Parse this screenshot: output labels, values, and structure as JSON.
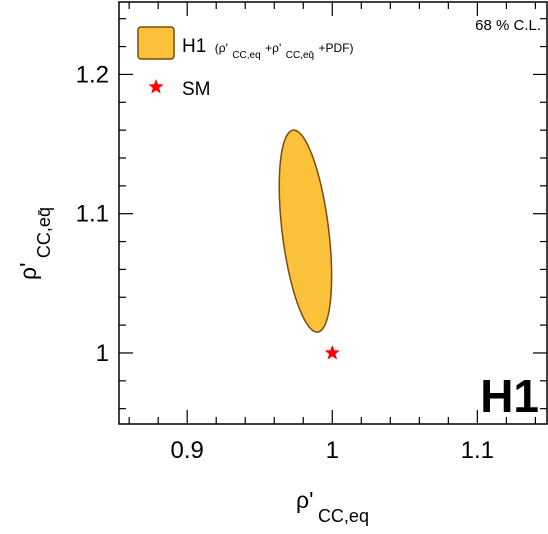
{
  "chart_data": {
    "type": "contour",
    "confidence_label": "68 % C.L.",
    "watermark": "H1",
    "xlabel": {
      "main": "ρ'",
      "sub": "CC,eq"
    },
    "ylabel": {
      "main": "ρ'",
      "sub": "CC,eq̄"
    },
    "xlim": [
      0.853,
      1.148
    ],
    "ylim": [
      0.949,
      1.252
    ],
    "xticks": [
      0.9,
      1.0,
      1.1
    ],
    "xtick_labels": [
      "0.9",
      "1",
      "1.1"
    ],
    "yticks": [
      1.0,
      1.1,
      1.2
    ],
    "ytick_labels": [
      "1",
      "1.1",
      "1.2"
    ],
    "x_minor_step": 0.02,
    "y_minor_step": 0.02,
    "grid": false,
    "legend_position": "top-left",
    "colors": {
      "ellipse_fill": "#fcc13a",
      "ellipse_edge": "#7a4a10",
      "sm_marker": "#ff0000"
    },
    "series": [
      {
        "name": "H1",
        "kind": "ellipse",
        "legend": {
          "main": "H1",
          "sub_prefix": "(ρ'",
          "sub1": "CC,eq",
          "mid": "+ρ'",
          "sub2": "CC,eq̄",
          "suffix": "+PDF)"
        },
        "center": {
          "x": 0.9815,
          "y": 1.0875
        },
        "extent_x": 0.0085,
        "extent_y": 0.0725,
        "top_point": {
          "x": 0.973,
          "y": 1.16
        },
        "bottom_point": {
          "x": 0.99,
          "y": 1.015
        }
      },
      {
        "name": "SM",
        "kind": "marker",
        "marker": "star",
        "legend": {
          "main": "SM"
        },
        "x": 1.0,
        "y": 1.0
      }
    ]
  }
}
